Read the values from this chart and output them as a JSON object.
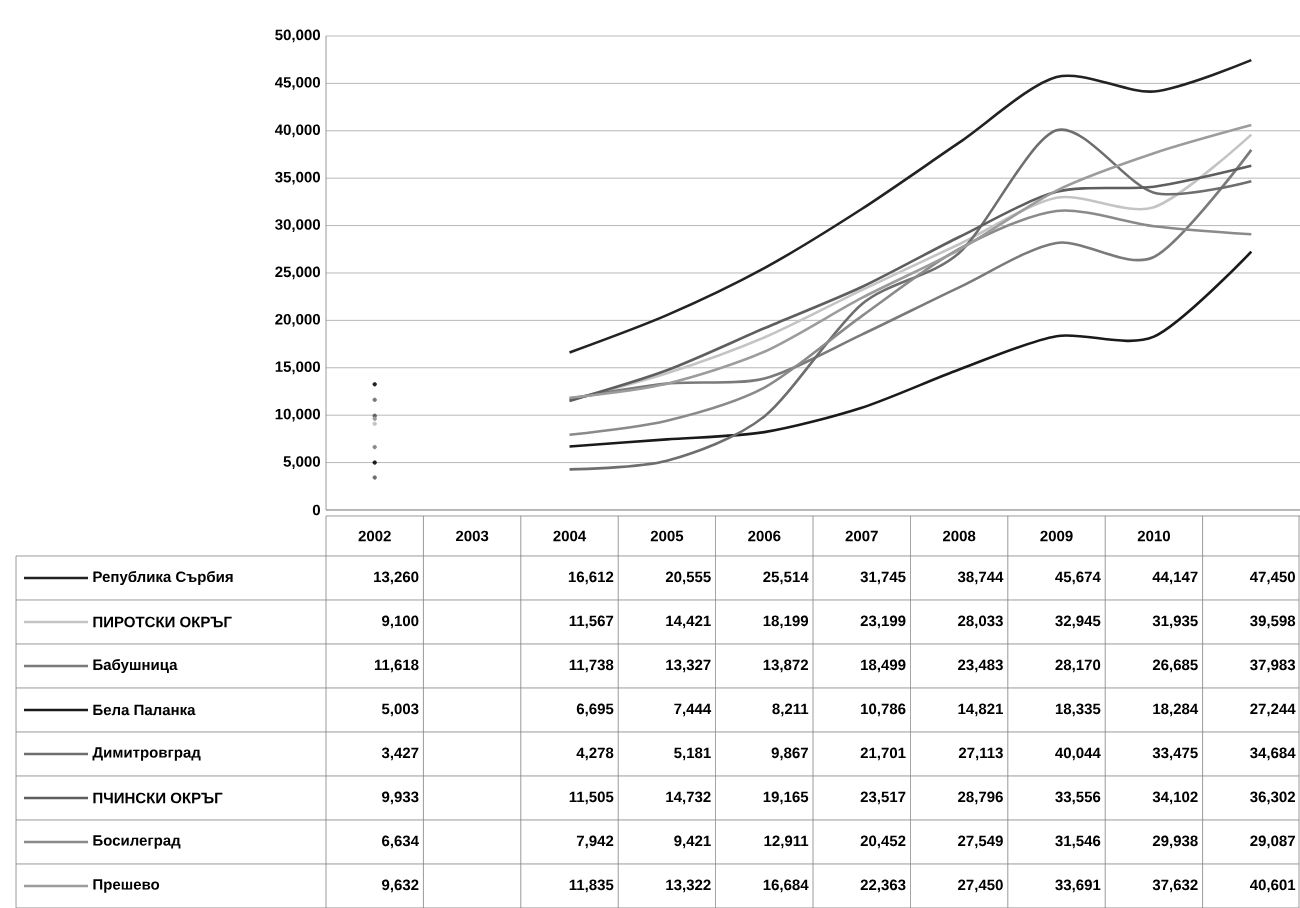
{
  "chart_data": {
    "type": "line",
    "categories": [
      "2002",
      "2003",
      "2004",
      "2005",
      "2006",
      "2007",
      "2008",
      "2009",
      "2010",
      null
    ],
    "ylim": [
      0,
      50000
    ],
    "yticks": [
      {
        "value": 0,
        "label": "0"
      },
      {
        "value": 5000,
        "label": "5,000"
      },
      {
        "value": 10000,
        "label": "10,000"
      },
      {
        "value": 15000,
        "label": "15,000"
      },
      {
        "value": 20000,
        "label": "20,000"
      },
      {
        "value": 25000,
        "label": "25,000"
      },
      {
        "value": 30000,
        "label": "30,000"
      },
      {
        "value": 35000,
        "label": "35,000"
      },
      {
        "value": 40000,
        "label": "40,000"
      },
      {
        "value": 45000,
        "label": "45,000"
      },
      {
        "value": 50000,
        "label": "50,000"
      }
    ],
    "grid": "y",
    "legend": "bottom",
    "marker": "none",
    "line_style": "solid",
    "series": [
      {
        "name": "Република Сърбия",
        "color": "#222222",
        "values": [
          13260,
          null,
          16612,
          20555,
          25514,
          31745,
          38744,
          45674,
          44147,
          47450
        ],
        "value_labels": [
          "13,260",
          null,
          "16,612",
          "20,555",
          "25,514",
          "31,745",
          "38,744",
          "45,674",
          "44,147",
          "47,450"
        ]
      },
      {
        "name": "ПИРОТСКИ ОКРЪГ",
        "color": "#c4c4c4",
        "values": [
          9100,
          null,
          11567,
          14421,
          18199,
          23199,
          28033,
          32945,
          31935,
          39598
        ],
        "value_labels": [
          "9,100",
          null,
          "11,567",
          "14,421",
          "18,199",
          "23,199",
          "28,033",
          "32,945",
          "31,935",
          "39,598"
        ]
      },
      {
        "name": "Бабушница",
        "color": "#7a7a7a",
        "values": [
          11618,
          null,
          11738,
          13327,
          13872,
          18499,
          23483,
          28170,
          26685,
          37983
        ],
        "value_labels": [
          "11,618",
          null,
          "11,738",
          "13,327",
          "13,872",
          "18,499",
          "23,483",
          "28,170",
          "26,685",
          "37,983"
        ]
      },
      {
        "name": "Бела Паланка",
        "color": "#1a1a1a",
        "values": [
          5003,
          null,
          6695,
          7444,
          8211,
          10786,
          14821,
          18335,
          18284,
          27244
        ],
        "value_labels": [
          "5,003",
          null,
          "6,695",
          "7,444",
          "8,211",
          "10,786",
          "14,821",
          "18,335",
          "18,284",
          "27,244"
        ]
      },
      {
        "name": "Димитровград",
        "color": "#6e6e6e",
        "values": [
          3427,
          null,
          4278,
          5181,
          9867,
          21701,
          27113,
          40044,
          33475,
          34684
        ],
        "value_labels": [
          "3,427",
          null,
          "4,278",
          "5,181",
          "9,867",
          "21,701",
          "27,113",
          "40,044",
          "33,475",
          "34,684"
        ]
      },
      {
        "name": "ПЧИНСКИ ОКРЪГ",
        "color": "#5e5e5e",
        "values": [
          9933,
          null,
          11505,
          14732,
          19165,
          23517,
          28796,
          33556,
          34102,
          36302
        ],
        "value_labels": [
          "9,933",
          null,
          "11,505",
          "14,732",
          "19,165",
          "23,517",
          "28,796",
          "33,556",
          "34,102",
          "36,302"
        ]
      },
      {
        "name": "Босилеград",
        "color": "#8a8a8a",
        "values": [
          6634,
          null,
          7942,
          9421,
          12911,
          20452,
          27549,
          31546,
          29938,
          29087
        ],
        "value_labels": [
          "6,634",
          null,
          "7,942",
          "9,421",
          "12,911",
          "20,452",
          "27,549",
          "31,546",
          "29,938",
          "29,087"
        ]
      },
      {
        "name": "Прешево",
        "color": "#9c9c9c",
        "values": [
          9632,
          null,
          11835,
          13322,
          16684,
          22363,
          27450,
          33691,
          37632,
          40601
        ],
        "value_labels": [
          "9,632",
          null,
          "11,835",
          "13,322",
          "16,684",
          "22,363",
          "27,450",
          "33,691",
          "37,632",
          "40,601"
        ]
      }
    ]
  }
}
